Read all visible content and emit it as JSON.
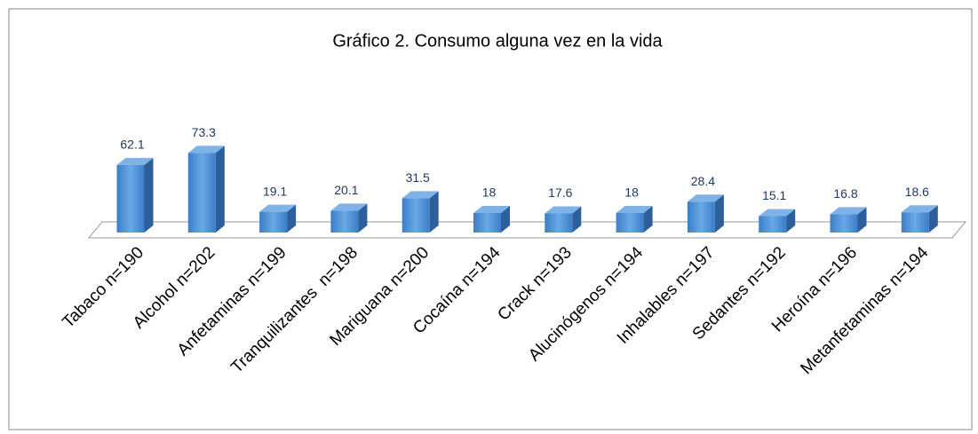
{
  "chart_data": {
    "type": "bar3d",
    "title": "Gráfico 2. Consumo alguna vez en la vida",
    "categories": [
      "Tabaco n=190",
      "Alcohol n=202",
      "Anfetaminas n=199",
      "Tranquilizantes  n=198",
      "Mariguana n=200",
      "Cocaína n=194",
      "Crack n=193",
      "Alucinógenos n=194",
      "Inhalables n=197",
      "Sedantes n=192",
      "Heroína n=196",
      "Metanfetaminas n=194"
    ],
    "values": [
      62.1,
      73.3,
      19.1,
      20.1,
      31.5,
      18,
      17.6,
      18,
      28.4,
      15.1,
      16.8,
      18.6
    ],
    "color": "#4a8fd6"
  }
}
